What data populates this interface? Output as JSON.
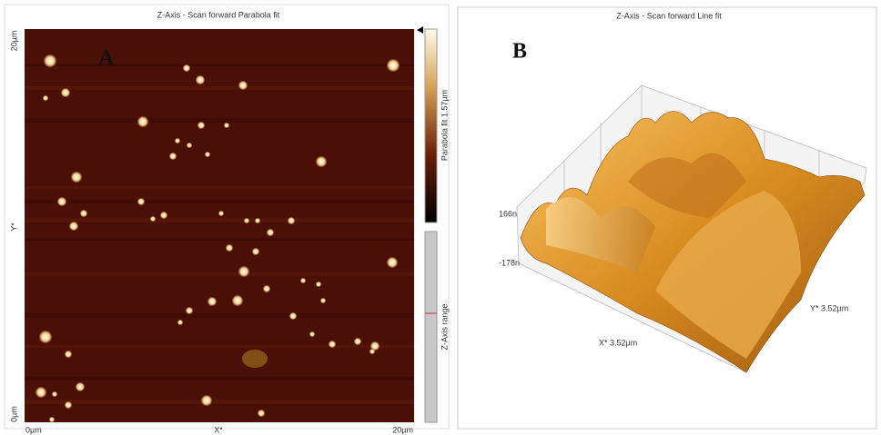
{
  "panel_a": {
    "letter": "A",
    "title": "Z-Axis - Scan forward   Parabola fit",
    "y_top": "20µm",
    "y_mid": "Y*",
    "y_bottom": "0µm",
    "x_left": "0µm",
    "x_mid": "X*",
    "x_right": "20µm",
    "colorbar_label": "Parabola fit 1.57µm",
    "range_label": "Z-Axis range"
  },
  "panel_b": {
    "letter": "B",
    "title": "Z-Axis - Scan forward   Line fit",
    "z_top": "166n",
    "z_bottom": "-178n",
    "x_label": "X* 3.52µm",
    "y_label": "Y* 3.52µm"
  }
}
